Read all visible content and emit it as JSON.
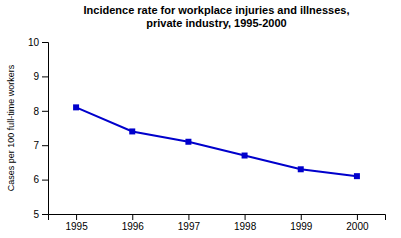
{
  "chart_data": {
    "type": "line",
    "title": "Incidence rate for workplace injuries and illnesses,\nprivate industry, 1995-2000",
    "y_label": "Cases per 100 full-time workers",
    "x": [
      1995,
      1996,
      1997,
      1998,
      1999,
      2000
    ],
    "values": [
      8.1,
      7.4,
      7.1,
      6.7,
      6.3,
      6.1
    ],
    "color": "#0000cc",
    "marker": "square",
    "xlim": [
      1994.5,
      2000.5
    ],
    "xticks": [
      1995,
      1996,
      1997,
      1998,
      1999,
      2000
    ],
    "ylim": [
      5,
      10
    ],
    "yticks": [
      5,
      6,
      7,
      8,
      9,
      10
    ],
    "grid": false
  }
}
